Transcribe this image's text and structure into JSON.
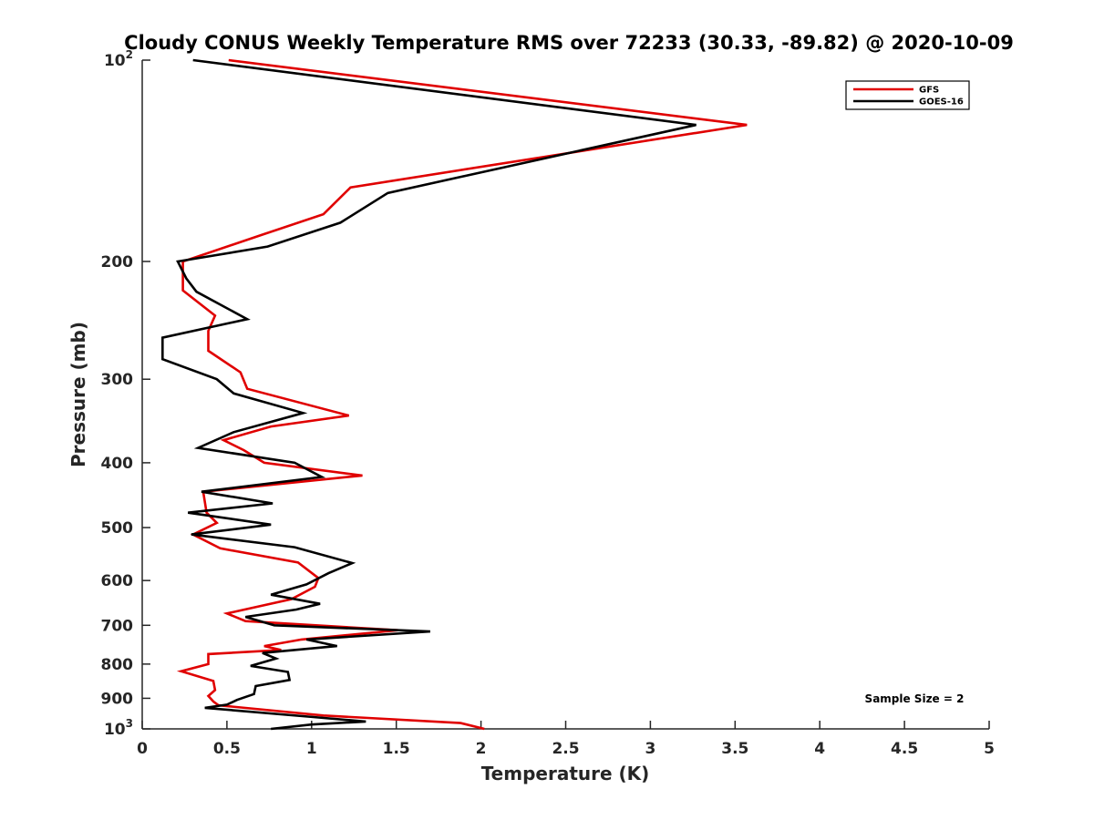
{
  "chart_data": {
    "type": "line",
    "title": "Cloudy CONUS Weekly Temperature RMS over 72233 (30.33, -89.82) @ 2020-10-09",
    "xlabel": "Temperature (K)",
    "ylabel": "Pressure (mb)",
    "xlim": [
      0,
      5
    ],
    "ylim": [
      100,
      1000
    ],
    "y_scale": "log",
    "y_reversed": true,
    "x_ticks": [
      "0",
      "0.5",
      "1",
      "1.5",
      "2",
      "2.5",
      "3",
      "3.5",
      "4",
      "4.5",
      "5"
    ],
    "y_ticks": [
      {
        "value": 100,
        "base": "10",
        "exp": "2"
      },
      {
        "value": 200,
        "label": "200"
      },
      {
        "value": 300,
        "label": "300"
      },
      {
        "value": 400,
        "label": "400"
      },
      {
        "value": 500,
        "label": "500"
      },
      {
        "value": 600,
        "label": "600"
      },
      {
        "value": 700,
        "label": "700"
      },
      {
        "value": 800,
        "label": "800"
      },
      {
        "value": 900,
        "label": "900"
      },
      {
        "value": 1000,
        "base": "10",
        "exp": "3"
      }
    ],
    "grid": false,
    "legend_position": "top-right",
    "annotation": "Sample Size = 2",
    "series": [
      {
        "name": "GFS",
        "color": "#e00000",
        "points": [
          [
            0.51,
            100
          ],
          [
            3.57,
            125
          ],
          [
            1.23,
            155
          ],
          [
            1.07,
            170
          ],
          [
            0.72,
            182
          ],
          [
            0.24,
            200
          ],
          [
            0.24,
            221
          ],
          [
            0.43,
            241
          ],
          [
            0.39,
            254
          ],
          [
            0.39,
            272
          ],
          [
            0.58,
            293
          ],
          [
            0.62,
            310
          ],
          [
            1.22,
            340
          ],
          [
            0.76,
            353
          ],
          [
            0.48,
            370
          ],
          [
            0.6,
            383
          ],
          [
            0.72,
            400
          ],
          [
            1.3,
            418
          ],
          [
            0.36,
            442
          ],
          [
            0.38,
            475
          ],
          [
            0.44,
            492
          ],
          [
            0.3,
            512
          ],
          [
            0.46,
            537
          ],
          [
            0.92,
            564
          ],
          [
            1.04,
            595
          ],
          [
            1.02,
            613
          ],
          [
            0.88,
            640
          ],
          [
            0.5,
            672
          ],
          [
            0.61,
            690
          ],
          [
            1.51,
            712
          ],
          [
            0.94,
            735
          ],
          [
            0.72,
            752
          ],
          [
            0.82,
            762
          ],
          [
            0.39,
            773
          ],
          [
            0.39,
            800
          ],
          [
            0.23,
            820
          ],
          [
            0.42,
            848
          ],
          [
            0.43,
            875
          ],
          [
            0.39,
            893
          ],
          [
            0.42,
            910
          ],
          [
            0.45,
            922
          ],
          [
            1.07,
            955
          ],
          [
            1.88,
            980
          ],
          [
            2.02,
            1000
          ]
        ]
      },
      {
        "name": "GOES-16",
        "color": "#000000",
        "points": [
          [
            0.3,
            100
          ],
          [
            3.27,
            125
          ],
          [
            1.45,
            158
          ],
          [
            1.17,
            175
          ],
          [
            0.74,
            190
          ],
          [
            0.21,
            200
          ],
          [
            0.26,
            212
          ],
          [
            0.32,
            222
          ],
          [
            0.62,
            244
          ],
          [
            0.12,
            260
          ],
          [
            0.12,
            280
          ],
          [
            0.44,
            300
          ],
          [
            0.54,
            315
          ],
          [
            0.95,
            337
          ],
          [
            0.54,
            360
          ],
          [
            0.33,
            380
          ],
          [
            0.9,
            400
          ],
          [
            1.06,
            420
          ],
          [
            0.35,
            442
          ],
          [
            0.77,
            460
          ],
          [
            0.27,
            475
          ],
          [
            0.76,
            495
          ],
          [
            0.29,
            512
          ],
          [
            0.9,
            535
          ],
          [
            1.24,
            565
          ],
          [
            1.1,
            585
          ],
          [
            0.97,
            608
          ],
          [
            0.76,
            630
          ],
          [
            1.05,
            650
          ],
          [
            0.91,
            663
          ],
          [
            0.61,
            680
          ],
          [
            0.78,
            700
          ],
          [
            1.7,
            715
          ],
          [
            0.97,
            735
          ],
          [
            1.15,
            752
          ],
          [
            0.71,
            770
          ],
          [
            0.79,
            785
          ],
          [
            0.64,
            805
          ],
          [
            0.86,
            822
          ],
          [
            0.87,
            845
          ],
          [
            0.67,
            863
          ],
          [
            0.66,
            887
          ],
          [
            0.56,
            905
          ],
          [
            0.5,
            920
          ],
          [
            0.37,
            930
          ],
          [
            1.01,
            960
          ],
          [
            1.32,
            975
          ],
          [
            1.0,
            985
          ],
          [
            0.76,
            1000
          ]
        ]
      }
    ]
  }
}
